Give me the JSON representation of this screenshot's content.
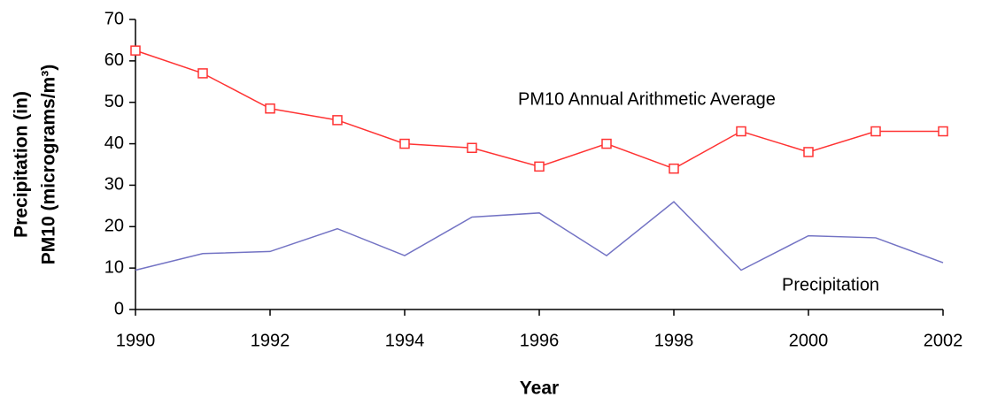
{
  "chart_data": {
    "type": "line",
    "x_label": "Year",
    "y_label_lines": [
      "Precipitation  (in)",
      "PM10  (micrograms/m³)"
    ],
    "x": [
      1990,
      1991,
      1992,
      1993,
      1994,
      1995,
      1996,
      1997,
      1998,
      1999,
      2000,
      2001,
      2002
    ],
    "series": [
      {
        "name": "PM10 Annual Arithmetic Average",
        "color": "#ff3333",
        "marker": "square",
        "values": [
          62.5,
          57,
          48.5,
          45.7,
          40,
          39,
          34.5,
          40,
          34,
          43,
          38,
          43,
          43
        ]
      },
      {
        "name": "Precipitation",
        "color": "#7373c4",
        "marker": "none",
        "values": [
          9.5,
          13.5,
          14,
          19.5,
          13,
          22.3,
          23.3,
          13,
          26,
          9.5,
          17.8,
          17.3,
          11.3
        ]
      }
    ],
    "xlim": [
      1990,
      2002
    ],
    "xticks": [
      1990,
      1992,
      1994,
      1996,
      1998,
      2000,
      2002
    ],
    "ylim": [
      0,
      70
    ],
    "yticks": [
      0,
      10,
      20,
      30,
      40,
      50,
      60,
      70
    ],
    "grid": false
  }
}
